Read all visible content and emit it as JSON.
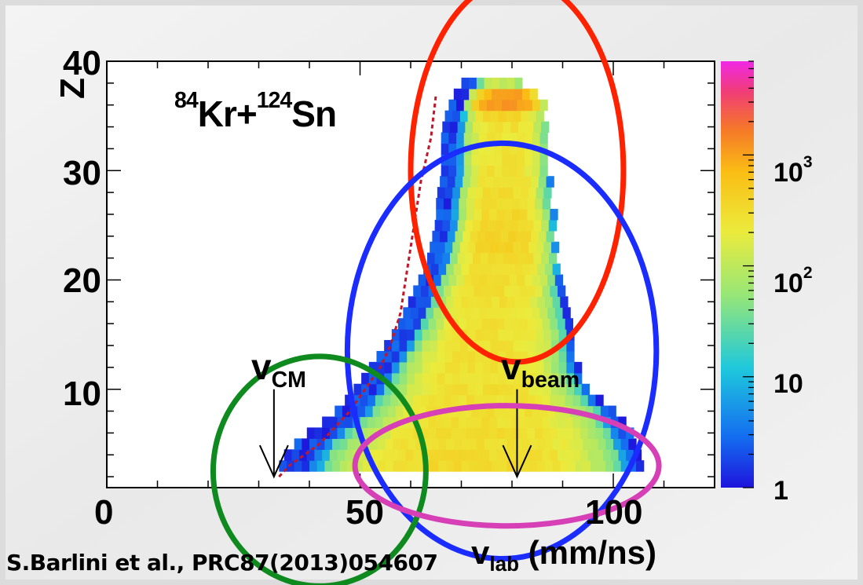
{
  "chart_data": {
    "type": "heatmap",
    "title_parts": {
      "a_mass": "84",
      "a_sym": "Kr+",
      "b_mass": "124",
      "b_sym": "Sn"
    },
    "ylabel": "Z",
    "xlabel_main": "v",
    "xlabel_sub": "lab",
    "xlabel_unit": "(mm/ns)",
    "x_ticks": [
      "0",
      "50",
      "100"
    ],
    "y_ticks": [
      "10",
      "20",
      "30",
      "40"
    ],
    "xlim": [
      0,
      120
    ],
    "ylim": [
      1,
      40
    ],
    "colorbar": {
      "scale": "log",
      "range": [
        1,
        7000
      ],
      "ticks": [
        {
          "base": "1",
          "exp": ""
        },
        {
          "base": "10",
          "exp": ""
        },
        {
          "base": "10",
          "exp": "2"
        },
        {
          "base": "10",
          "exp": "3"
        }
      ]
    },
    "velocity_markers": [
      {
        "main": "v",
        "sub": "CM",
        "x": 33,
        "y_top": 10,
        "y_tip": 2
      },
      {
        "main": "v",
        "sub": "beam",
        "x": 81,
        "y_top": 10,
        "y_tip": 2
      }
    ],
    "distribution_envelope": [
      {
        "z": 3,
        "x_min": 34,
        "x_max": 106,
        "peak": 330
      },
      {
        "z": 5,
        "x_min": 38,
        "x_max": 104,
        "peak": 300
      },
      {
        "z": 7,
        "x_min": 44,
        "x_max": 101,
        "peak": 280
      },
      {
        "z": 9,
        "x_min": 48,
        "x_max": 96,
        "peak": 280
      },
      {
        "z": 11,
        "x_min": 51,
        "x_max": 93,
        "peak": 280
      },
      {
        "z": 13,
        "x_min": 54,
        "x_max": 92,
        "peak": 280
      },
      {
        "z": 15,
        "x_min": 57,
        "x_max": 91,
        "peak": 270
      },
      {
        "z": 17,
        "x_min": 59,
        "x_max": 90,
        "peak": 270
      },
      {
        "z": 19,
        "x_min": 61,
        "x_max": 89,
        "peak": 290
      },
      {
        "z": 21,
        "x_min": 63,
        "x_max": 89,
        "peak": 330
      },
      {
        "z": 23,
        "x_min": 64,
        "x_max": 88,
        "peak": 400
      },
      {
        "z": 25,
        "x_min": 65,
        "x_max": 88,
        "peak": 360
      },
      {
        "z": 27,
        "x_min": 65,
        "x_max": 87,
        "peak": 300
      },
      {
        "z": 29,
        "x_min": 66,
        "x_max": 87,
        "peak": 280
      },
      {
        "z": 31,
        "x_min": 66,
        "x_max": 87,
        "peak": 260
      },
      {
        "z": 33,
        "x_min": 66,
        "x_max": 87,
        "peak": 240
      },
      {
        "z": 35,
        "x_min": 67,
        "x_max": 86,
        "peak": 400
      },
      {
        "z": 36,
        "x_min": 68,
        "x_max": 86,
        "peak": 1800
      },
      {
        "z": 37,
        "x_min": 69,
        "x_max": 84,
        "peak": 200
      },
      {
        "z": 38,
        "x_min": 71,
        "x_max": 80,
        "peak": 40
      }
    ],
    "dashed_curve": [
      [
        34,
        2
      ],
      [
        36,
        3
      ],
      [
        39,
        4
      ],
      [
        42,
        5
      ],
      [
        45,
        6.5
      ],
      [
        48,
        8
      ],
      [
        51,
        10
      ],
      [
        54,
        12
      ],
      [
        56,
        14
      ],
      [
        58,
        17
      ],
      [
        59,
        20
      ],
      [
        60,
        23
      ],
      [
        61,
        26
      ],
      [
        62,
        29
      ],
      [
        63,
        31
      ],
      [
        64,
        33
      ],
      [
        64.5,
        35
      ],
      [
        65,
        37
      ]
    ],
    "ellipses": [
      {
        "color": "#ff2200",
        "cx": 81,
        "cy": 30,
        "rx": 21,
        "ry": 17.5
      },
      {
        "color": "#1a2cff",
        "cx": 78,
        "cy": 13.5,
        "rx": 30.5,
        "ry": 19
      },
      {
        "color": "#0e8a1e",
        "cx": 42,
        "cy": 2.5,
        "rx": 21,
        "ry": 10.5
      },
      {
        "color": "#d63fb6",
        "cx": 79,
        "cy": 3,
        "rx": 30,
        "ry": 5.5
      }
    ],
    "credit": "S.Barlini et al., PRC87(2013)054607"
  }
}
